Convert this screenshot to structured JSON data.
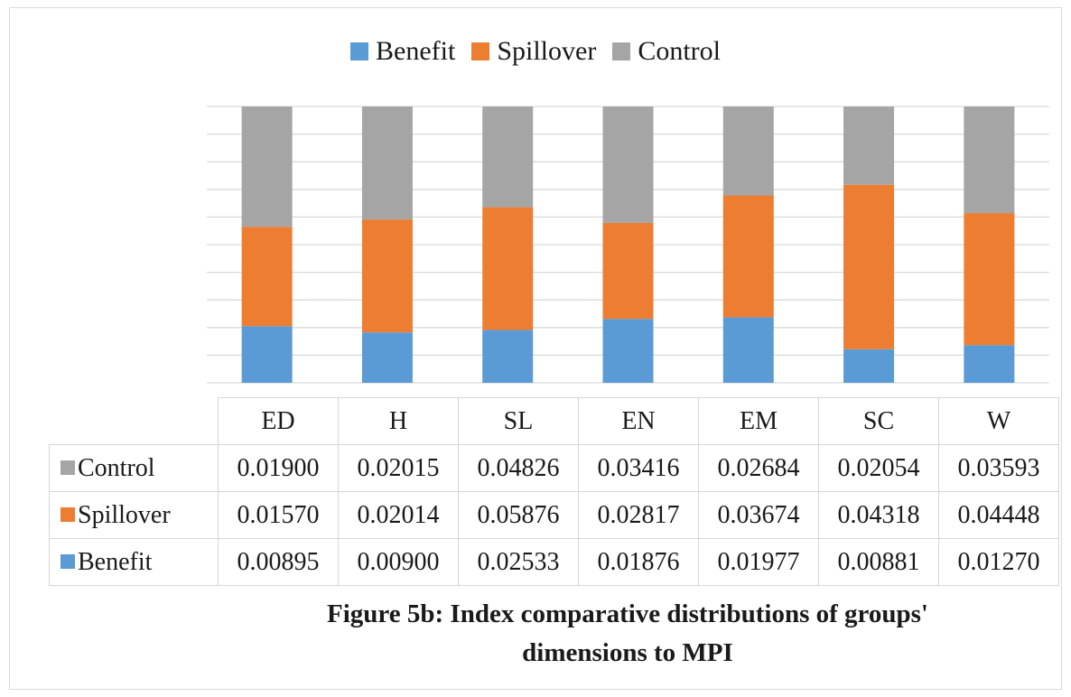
{
  "colors": {
    "benefit": "#5b9bd5",
    "spillover": "#ed7d31",
    "control": "#a5a5a5",
    "grid": "#d9d9d9"
  },
  "legend": [
    "Benefit",
    "Spillover",
    "Control"
  ],
  "table": {
    "columns": [
      "ED",
      "H",
      "SL",
      "EN",
      "EM",
      "SC",
      "W"
    ],
    "rows": [
      {
        "label": "Control",
        "series": "control",
        "values": [
          "0.01900",
          "0.02015",
          "0.04826",
          "0.03416",
          "0.02684",
          "0.02054",
          "0.03593"
        ]
      },
      {
        "label": "Spillover",
        "series": "spillover",
        "values": [
          "0.01570",
          "0.02014",
          "0.05876",
          "0.02817",
          "0.03674",
          "0.04318",
          "0.04448"
        ]
      },
      {
        "label": "Benefit",
        "series": "benefit",
        "values": [
          "0.00895",
          "0.00900",
          "0.02533",
          "0.01876",
          "0.01977",
          "0.00881",
          "0.01270"
        ]
      }
    ]
  },
  "caption": {
    "line1": "Figure 5b: Index comparative distributions of groups'",
    "line2": "dimensions to MPI"
  },
  "chart_data": {
    "type": "bar",
    "stacked": true,
    "normalized": true,
    "categories": [
      "ED",
      "H",
      "SL",
      "EN",
      "EM",
      "SC",
      "W"
    ],
    "series": [
      {
        "name": "Benefit",
        "values": [
          0.00895,
          0.009,
          0.02533,
          0.01876,
          0.01977,
          0.00881,
          0.0127
        ]
      },
      {
        "name": "Spillover",
        "values": [
          0.0157,
          0.02014,
          0.05876,
          0.02817,
          0.03674,
          0.04318,
          0.04448
        ]
      },
      {
        "name": "Control",
        "values": [
          0.019,
          0.02015,
          0.04826,
          0.03416,
          0.02684,
          0.02054,
          0.03593
        ]
      }
    ],
    "gridlines": 10,
    "legend": "top"
  }
}
